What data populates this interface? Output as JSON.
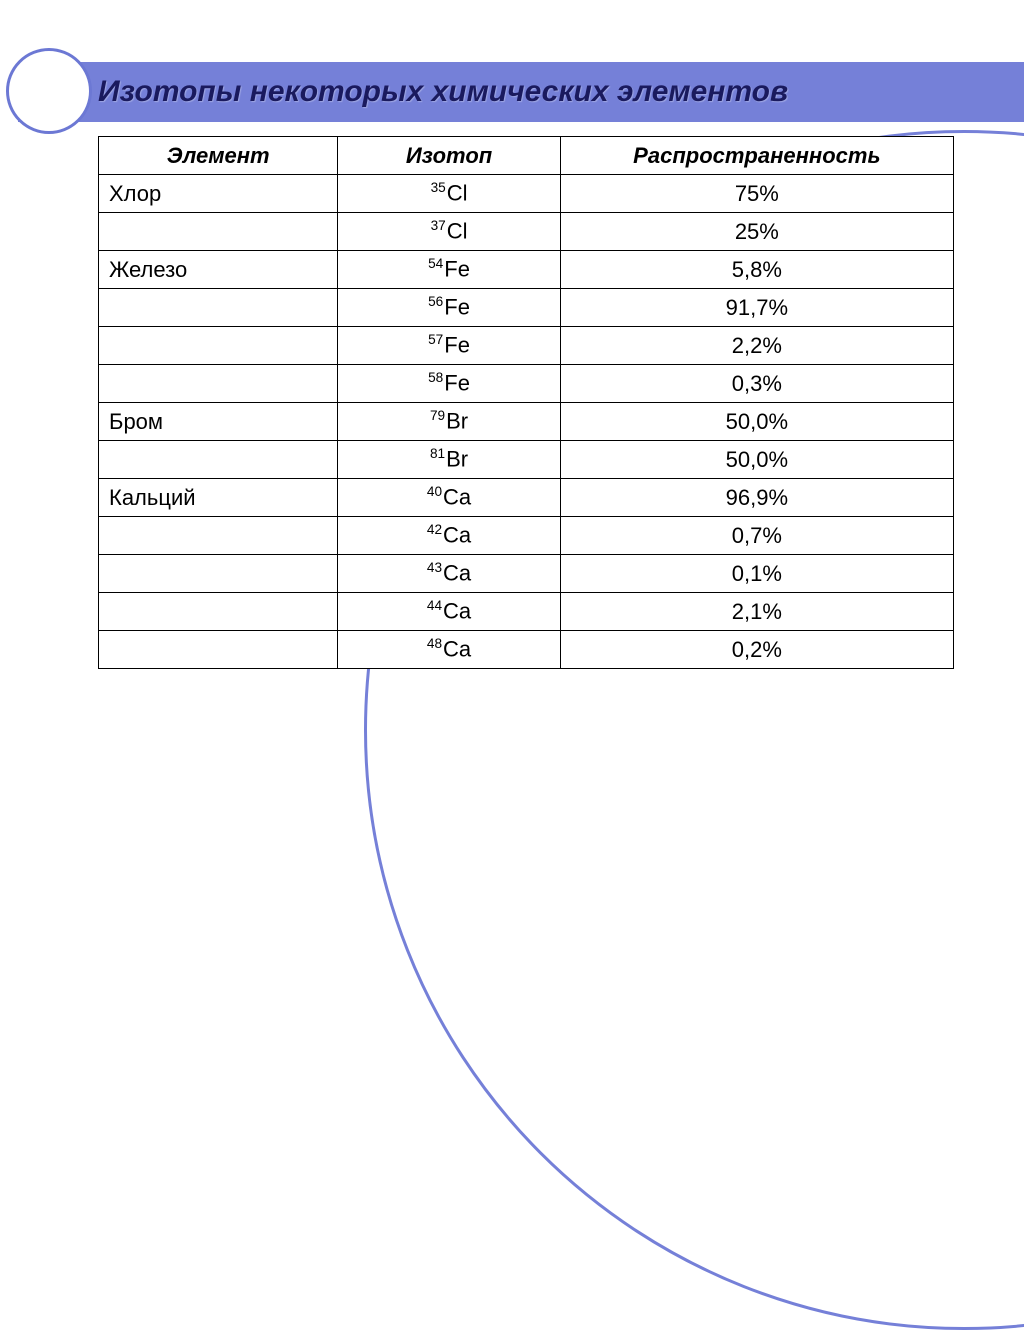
{
  "title": "Изотопы некоторых химических элементов",
  "columns": {
    "element": "Элемент",
    "isotope": "Изотоп",
    "abundance": "Распространенность"
  },
  "rows": [
    {
      "element": "Хлор",
      "mass": "35",
      "symbol": "Cl",
      "abundance": "75%"
    },
    {
      "element": "",
      "mass": "37",
      "symbol": "Cl",
      "abundance": "25%"
    },
    {
      "element": "Железо",
      "mass": "54",
      "symbol": "Fe",
      "abundance": "5,8%"
    },
    {
      "element": "",
      "mass": "56",
      "symbol": "Fe",
      "abundance": "91,7%"
    },
    {
      "element": "",
      "mass": "57",
      "symbol": "Fe",
      "abundance": "2,2%"
    },
    {
      "element": "",
      "mass": "58",
      "symbol": "Fe",
      "abundance": "0,3%"
    },
    {
      "element": "Бром",
      "mass": "79",
      "symbol": "Br",
      "abundance": "50,0%"
    },
    {
      "element": "",
      "mass": "81",
      "symbol": "Br",
      "abundance": "50,0%"
    },
    {
      "element": "Кальций",
      "mass": "40",
      "symbol": "Ca",
      "abundance": "96,9%"
    },
    {
      "element": "",
      "mass": "42",
      "symbol": "Ca",
      "abundance": "0,7%"
    },
    {
      "element": "",
      "mass": "43",
      "symbol": "Ca",
      "abundance": "0,1%"
    },
    {
      "element": "",
      "mass": "44",
      "symbol": "Ca",
      "abundance": "2,1%"
    },
    {
      "element": "",
      "mass": "48",
      "symbol": "Ca",
      "abundance": "0,2%"
    }
  ],
  "colors": {
    "header_band": "#7580d8",
    "title_text": "#1a1a5e",
    "ring_border": "#6c78d4",
    "table_border": "#000000",
    "background": "#ffffff"
  }
}
